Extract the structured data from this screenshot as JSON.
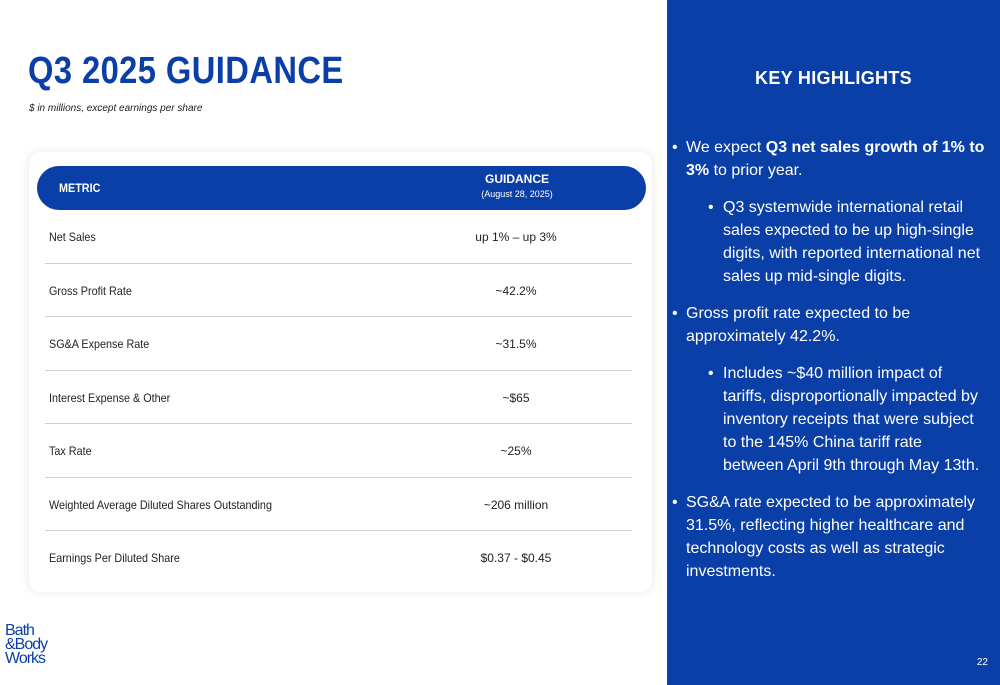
{
  "title": "Q3 2025 GUIDANCE",
  "subtitle": "$ in millions, except earnings per share",
  "table": {
    "header_metric": "METRIC",
    "header_guidance": "GUIDANCE",
    "header_date": "(August 28, 2025)",
    "rows": [
      {
        "metric": "Net Sales",
        "value": "up 1% – up 3%"
      },
      {
        "metric": "Gross Profit Rate",
        "value": "~42.2%"
      },
      {
        "metric": "SG&A Expense Rate",
        "value": "~31.5%"
      },
      {
        "metric": "Interest Expense & Other",
        "value": "~$65"
      },
      {
        "metric": "Tax Rate",
        "value": "~25%"
      },
      {
        "metric": "Weighted Average Diluted Shares Outstanding",
        "value": "~206 million"
      },
      {
        "metric": "Earnings Per Diluted Share",
        "value": "$0.37 - $0.45"
      }
    ]
  },
  "logo": {
    "line1": "Bath",
    "line2": "&Body",
    "line3": "Works"
  },
  "highlights": {
    "title": "KEY HIGHLIGHTS",
    "b1_pre": "We expect ",
    "b1_bold": "Q3 net sales growth of 1% to 3%",
    "b1_post": " to prior year.",
    "b1_sub": "Q3 systemwide international retail sales expected to be up high-single digits, with reported international net sales up mid-single digits.",
    "b2": "Gross profit rate expected to be approximately 42.2%.",
    "b2_sub": "Includes ~$40 million impact of tariffs, disproportionally impacted by inventory receipts that were subject to the 145% China tariff rate between April 9th through May 13th.",
    "b3": "SG&A rate expected to be approximately 31.5%, reflecting higher healthcare and technology costs as well as strategic investments."
  },
  "page_number": "22",
  "colors": {
    "brand_blue": "#0a3fa8"
  }
}
